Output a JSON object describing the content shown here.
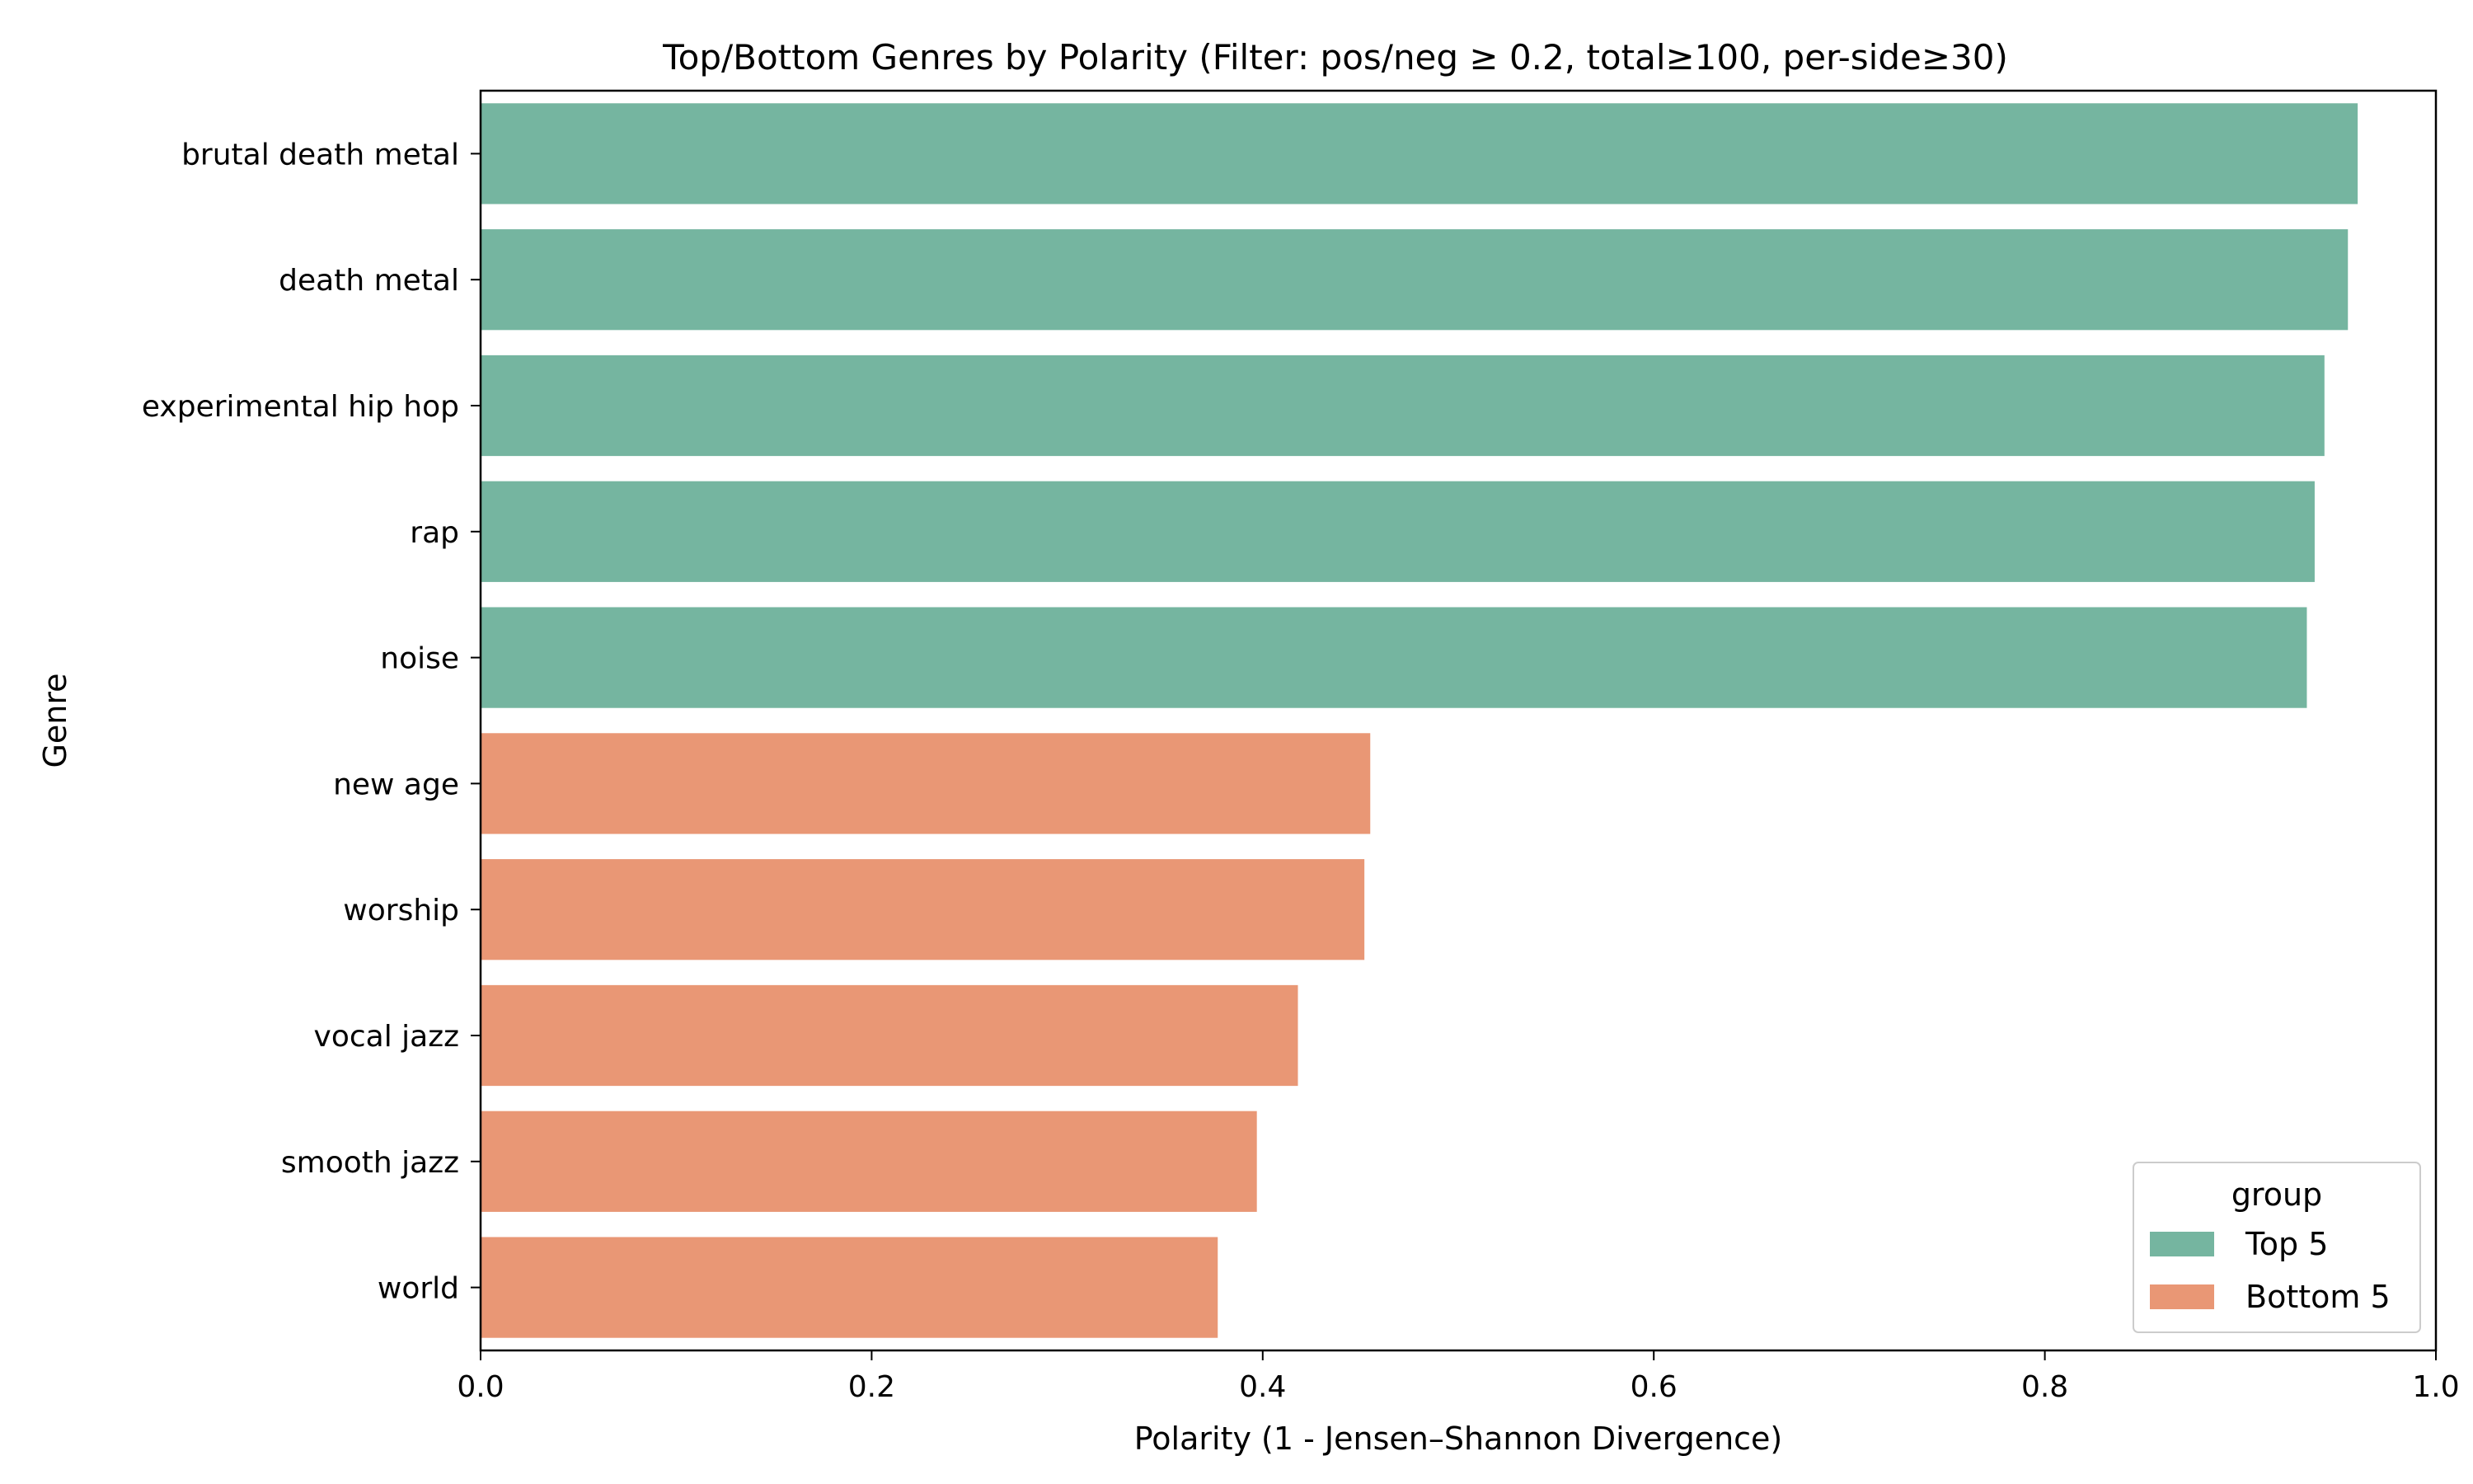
{
  "chart_data": {
    "type": "bar",
    "orientation": "horizontal",
    "title": "Top/Bottom Genres by Polarity (Filter: pos/neg ≥ 0.2, total≥100, per-side≥30)",
    "xlabel": "Polarity (1 - Jensen–Shannon Divergence)",
    "ylabel": "Genre",
    "xlim": [
      0.0,
      1.0
    ],
    "xticks": [
      "0.0",
      "0.2",
      "0.4",
      "0.6",
      "0.8",
      "1.0"
    ],
    "grid": false,
    "legend": {
      "title": "group",
      "placement": "lower-right",
      "entries": [
        {
          "label": "Top 5",
          "color": "#75b5a0"
        },
        {
          "label": "Bottom 5",
          "color": "#e99775"
        }
      ]
    },
    "categories": [
      "brutal death metal",
      "death metal",
      "experimental hip hop",
      "rap",
      "noise",
      "new age",
      "worship",
      "vocal jazz",
      "smooth jazz",
      "world"
    ],
    "values": [
      0.96,
      0.955,
      0.943,
      0.938,
      0.934,
      0.455,
      0.452,
      0.418,
      0.397,
      0.377
    ],
    "groups": [
      "Top 5",
      "Top 5",
      "Top 5",
      "Top 5",
      "Top 5",
      "Bottom 5",
      "Bottom 5",
      "Bottom 5",
      "Bottom 5",
      "Bottom 5"
    ]
  }
}
